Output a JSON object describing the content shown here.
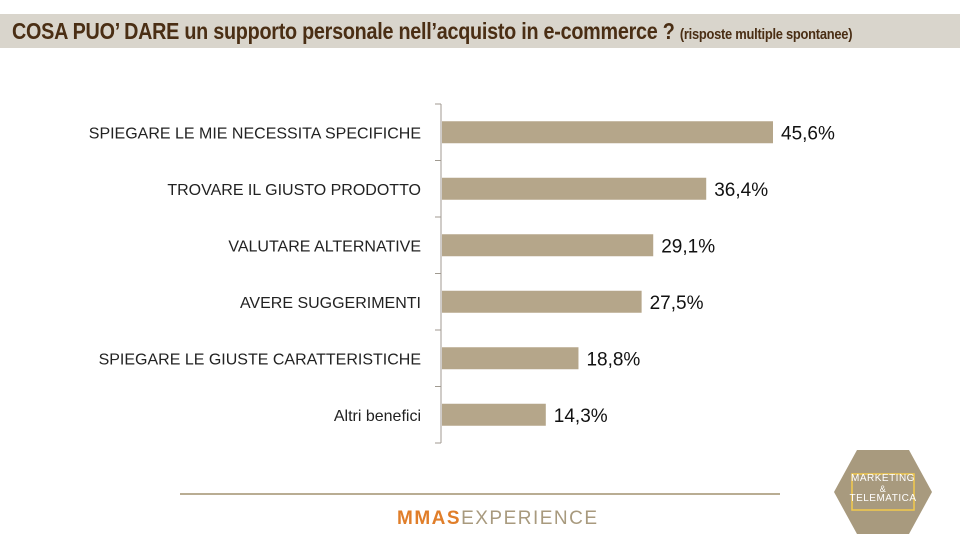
{
  "header": {
    "title": "COSA PUO’ DARE un supporto personale  nell’acquisto in e-commerce ?",
    "subtitle": "(risposte multiple spontanee)"
  },
  "colors": {
    "bar": "#b5a68a",
    "title_band": "#d9d5cc",
    "title_text": "#4a2e14",
    "axis": "#a09a90"
  },
  "chart_data": {
    "type": "bar",
    "orientation": "horizontal",
    "categories": [
      "SPIEGARE LE MIE NECESSITA SPECIFICHE",
      "TROVARE IL GIUSTO PRODOTTO",
      "VALUTARE ALTERNATIVE",
      "AVERE SUGGERIMENTI",
      "SPIEGARE LE GIUSTE CARATTERISTICHE",
      "Altri benefici"
    ],
    "values": [
      45.6,
      36.4,
      29.1,
      27.5,
      18.8,
      14.3
    ],
    "data_labels": [
      "45,6%",
      "36,4%",
      "29,1%",
      "27,5%",
      "18,8%",
      "14,3%"
    ],
    "unit": "%",
    "xlim": [
      0,
      50
    ],
    "grid": false,
    "legend": "none"
  },
  "footer": {
    "brand_part1": "MMAS",
    "brand_part2": "EXPERIENCE",
    "logo_line1": "MARKETING",
    "logo_amp": "&",
    "logo_line2": "TELEMATICA"
  }
}
